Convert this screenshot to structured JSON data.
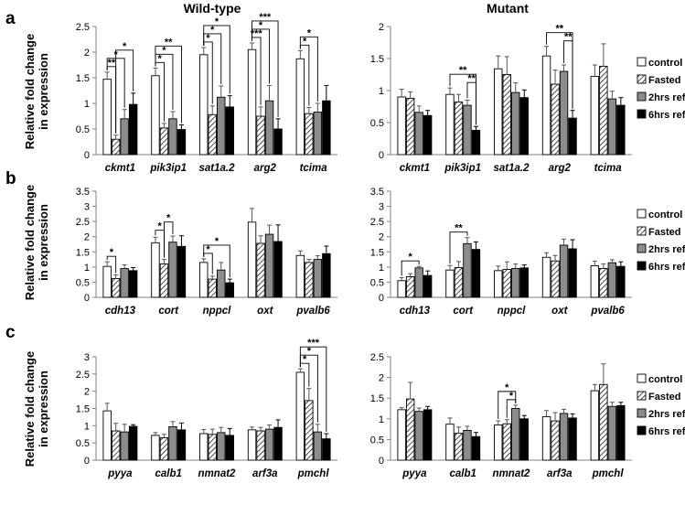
{
  "columns": [
    "Wild-type",
    "Mutant"
  ],
  "ylabel_line1": "Relative fold change",
  "ylabel_line2": "in expression",
  "legend": [
    "control",
    "Fasted",
    "2hrs refed",
    "6hrs refed"
  ],
  "colors": {
    "control": "#ffffff",
    "fasted": "hatched",
    "refed2": "#8c8c8c",
    "refed6": "#000000",
    "axis": "#808080"
  },
  "chart_data": [
    {
      "id": "a-wt",
      "row": "a",
      "column": "Wild-type",
      "type": "bar",
      "categories": [
        "ckmt1",
        "pik3ip1",
        "sat1a.2",
        "arg2",
        "tcima"
      ],
      "ylim": [
        0,
        2.5
      ],
      "yticks": [
        "0",
        "0.5",
        "1",
        "1.5",
        "2",
        "2.5"
      ],
      "series": [
        {
          "name": "control",
          "values": [
            1.47,
            1.54,
            1.95,
            2.05,
            1.87
          ],
          "errors": [
            0.14,
            0.15,
            0.14,
            0.13,
            0.16
          ]
        },
        {
          "name": "Fasted",
          "values": [
            0.3,
            0.52,
            0.78,
            0.75,
            0.8
          ],
          "errors": [
            0.08,
            0.09,
            0.17,
            0.18,
            0.12
          ]
        },
        {
          "name": "2hrs refed",
          "values": [
            0.7,
            0.7,
            1.12,
            1.05,
            0.83
          ],
          "errors": [
            0.18,
            0.14,
            0.22,
            0.3,
            0.17
          ]
        },
        {
          "name": "6hrs refed",
          "values": [
            0.98,
            0.49,
            0.93,
            0.5,
            1.05
          ],
          "errors": [
            0.22,
            0.09,
            0.22,
            0.2,
            0.3
          ]
        }
      ],
      "significance": [
        {
          "cat": 0,
          "pair": [
            0,
            1
          ],
          "label": "**"
        },
        {
          "cat": 0,
          "pair": [
            0,
            2
          ],
          "label": "*"
        },
        {
          "cat": 0,
          "pair": [
            1,
            3
          ],
          "label": "*"
        },
        {
          "cat": 1,
          "pair": [
            0,
            1
          ],
          "label": "*"
        },
        {
          "cat": 1,
          "pair": [
            0,
            2
          ],
          "label": "*"
        },
        {
          "cat": 1,
          "pair": [
            0,
            3
          ],
          "label": "**"
        },
        {
          "cat": 2,
          "pair": [
            0,
            1
          ],
          "label": "*"
        },
        {
          "cat": 2,
          "pair": [
            0,
            2
          ],
          "label": "*"
        },
        {
          "cat": 2,
          "pair": [
            0,
            3
          ],
          "label": "*"
        },
        {
          "cat": 3,
          "pair": [
            0,
            1
          ],
          "label": "***"
        },
        {
          "cat": 3,
          "pair": [
            0,
            2
          ],
          "label": "*"
        },
        {
          "cat": 3,
          "pair": [
            0,
            3
          ],
          "label": "***"
        },
        {
          "cat": 4,
          "pair": [
            0,
            1
          ],
          "label": "*"
        },
        {
          "cat": 4,
          "pair": [
            0,
            2
          ],
          "label": "*"
        }
      ]
    },
    {
      "id": "a-mut",
      "row": "a",
      "column": "Mutant",
      "type": "bar",
      "categories": [
        "ckmt1",
        "pik3ip1",
        "sat1a.2",
        "arg2",
        "tcima"
      ],
      "ylim": [
        0,
        2
      ],
      "yticks": [
        "0",
        "0.5",
        "1",
        "1.5",
        "2"
      ],
      "series": [
        {
          "name": "control",
          "values": [
            0.9,
            0.94,
            1.34,
            1.54,
            1.22
          ],
          "errors": [
            0.12,
            0.1,
            0.2,
            0.15,
            0.18
          ]
        },
        {
          "name": "Fasted",
          "values": [
            0.88,
            0.82,
            1.25,
            1.1,
            1.38
          ],
          "errors": [
            0.1,
            0.12,
            0.28,
            0.22,
            0.35
          ]
        },
        {
          "name": "2hrs refed",
          "values": [
            0.66,
            0.77,
            0.97,
            1.3,
            0.87
          ],
          "errors": [
            0.1,
            0.08,
            0.15,
            0.1,
            0.12
          ]
        },
        {
          "name": "6hrs refed",
          "values": [
            0.61,
            0.38,
            0.89,
            0.57,
            0.77
          ],
          "errors": [
            0.08,
            0.06,
            0.12,
            0.12,
            0.12
          ]
        }
      ],
      "significance": [
        {
          "cat": 1,
          "pair": [
            0,
            3
          ],
          "label": "**"
        },
        {
          "cat": 1,
          "pair": [
            2,
            3
          ],
          "label": "**"
        },
        {
          "cat": 3,
          "pair": [
            0,
            3
          ],
          "label": "**"
        },
        {
          "cat": 3,
          "pair": [
            2,
            3
          ],
          "label": "**"
        }
      ]
    },
    {
      "id": "b-wt",
      "row": "b",
      "column": "Wild-type",
      "type": "bar",
      "categories": [
        "cdh13",
        "cort",
        "nppcl",
        "oxt",
        "pvalb6"
      ],
      "ylim": [
        0,
        3.5
      ],
      "yticks": [
        "0",
        "0.5",
        "1",
        "1.5",
        "2",
        "2.5",
        "3",
        "3.5"
      ],
      "series": [
        {
          "name": "control",
          "values": [
            1.02,
            1.8,
            1.15,
            2.48,
            1.38
          ],
          "errors": [
            0.15,
            0.18,
            0.12,
            0.45,
            0.15
          ]
        },
        {
          "name": "Fasted",
          "values": [
            0.62,
            1.1,
            0.6,
            1.78,
            1.15
          ],
          "errors": [
            0.12,
            0.15,
            0.1,
            0.25,
            0.1
          ]
        },
        {
          "name": "2hrs refed",
          "values": [
            0.95,
            1.82,
            0.9,
            2.08,
            1.25
          ],
          "errors": [
            0.12,
            0.2,
            0.25,
            0.3,
            0.12
          ]
        },
        {
          "name": "6hrs refed",
          "values": [
            0.88,
            1.68,
            0.48,
            1.84,
            1.44
          ],
          "errors": [
            0.1,
            0.35,
            0.12,
            0.55,
            0.25
          ]
        }
      ],
      "significance": [
        {
          "cat": 0,
          "pair": [
            0,
            1
          ],
          "label": "*"
        },
        {
          "cat": 1,
          "pair": [
            0,
            1
          ],
          "label": "*"
        },
        {
          "cat": 1,
          "pair": [
            1,
            2
          ],
          "label": "*"
        },
        {
          "cat": 2,
          "pair": [
            0,
            1
          ],
          "label": "*"
        },
        {
          "cat": 2,
          "pair": [
            0,
            3
          ],
          "label": "*"
        }
      ]
    },
    {
      "id": "b-mut",
      "row": "b",
      "column": "Mutant",
      "type": "bar",
      "categories": [
        "cdh13",
        "cort",
        "nppcl",
        "oxt",
        "pvalb6"
      ],
      "ylim": [
        0,
        3.5
      ],
      "yticks": [
        "0",
        "0.5",
        "1",
        "1.5",
        "2",
        "2.5",
        "3",
        "3.5"
      ],
      "series": [
        {
          "name": "control",
          "values": [
            0.55,
            0.9,
            0.88,
            1.32,
            1.04
          ],
          "errors": [
            0.1,
            0.15,
            0.15,
            0.15,
            0.15
          ]
        },
        {
          "name": "Fasted",
          "values": [
            0.68,
            0.98,
            0.92,
            1.2,
            0.95
          ],
          "errors": [
            0.1,
            0.2,
            0.25,
            0.18,
            0.15
          ]
        },
        {
          "name": "2hrs refed",
          "values": [
            0.97,
            1.77,
            0.95,
            1.72,
            1.14
          ],
          "errors": [
            0.05,
            0.2,
            0.15,
            0.2,
            0.1
          ]
        },
        {
          "name": "6hrs refed",
          "values": [
            0.72,
            1.58,
            0.97,
            1.6,
            1.02
          ],
          "errors": [
            0.15,
            0.25,
            0.1,
            0.3,
            0.15
          ]
        }
      ],
      "significance": [
        {
          "cat": 0,
          "pair": [
            0,
            2
          ],
          "label": "*"
        },
        {
          "cat": 1,
          "pair": [
            0,
            2
          ],
          "label": "**"
        }
      ]
    },
    {
      "id": "c-wt",
      "row": "c",
      "column": "Wild-type",
      "type": "bar",
      "categories": [
        "pyya",
        "calb1",
        "nmnat2",
        "arf3a",
        "pmchl"
      ],
      "ylim": [
        0,
        3
      ],
      "yticks": [
        "0",
        "0.5",
        "1",
        "1.5",
        "2",
        "2.5",
        "3"
      ],
      "series": [
        {
          "name": "control",
          "values": [
            1.43,
            0.72,
            0.77,
            0.88,
            2.55
          ],
          "errors": [
            0.22,
            0.08,
            0.12,
            0.08,
            0.1
          ]
        },
        {
          "name": "Fasted",
          "values": [
            0.85,
            0.65,
            0.75,
            0.85,
            1.73
          ],
          "errors": [
            0.22,
            0.1,
            0.15,
            0.1,
            0.35
          ]
        },
        {
          "name": "2hrs refed",
          "values": [
            0.82,
            0.97,
            0.8,
            0.9,
            0.82
          ],
          "errors": [
            0.22,
            0.15,
            0.15,
            0.12,
            0.22
          ]
        },
        {
          "name": "6hrs refed",
          "values": [
            0.98,
            0.88,
            0.72,
            0.95,
            0.62
          ],
          "errors": [
            0.05,
            0.2,
            0.2,
            0.22,
            0.15
          ]
        }
      ],
      "significance": [
        {
          "cat": 4,
          "pair": [
            0,
            1
          ],
          "label": "*"
        },
        {
          "cat": 4,
          "pair": [
            0,
            2
          ],
          "label": "*"
        },
        {
          "cat": 4,
          "pair": [
            0,
            3
          ],
          "label": "***"
        }
      ]
    },
    {
      "id": "c-mut",
      "row": "c",
      "column": "Mutant",
      "type": "bar",
      "categories": [
        "pyya",
        "calb1",
        "nmnat2",
        "arf3a",
        "pmchl"
      ],
      "ylim": [
        0,
        2.5
      ],
      "yticks": [
        "0",
        "0.5",
        "1",
        "1.5",
        "2",
        "2.5"
      ],
      "series": [
        {
          "name": "control",
          "values": [
            1.22,
            0.87,
            0.85,
            1.05,
            1.68
          ],
          "errors": [
            0.05,
            0.15,
            0.1,
            0.15,
            0.15
          ]
        },
        {
          "name": "Fasted",
          "values": [
            1.48,
            0.65,
            0.88,
            0.95,
            1.83
          ],
          "errors": [
            0.4,
            0.15,
            0.1,
            0.2,
            0.5
          ]
        },
        {
          "name": "2hrs refed",
          "values": [
            1.18,
            0.72,
            1.25,
            1.13,
            1.3
          ],
          "errors": [
            0.08,
            0.1,
            0.08,
            0.1,
            0.1
          ]
        },
        {
          "name": "6hrs refed",
          "values": [
            1.22,
            0.57,
            1.0,
            1.02,
            1.32
          ],
          "errors": [
            0.08,
            0.1,
            0.08,
            0.1,
            0.08
          ]
        }
      ],
      "significance": [
        {
          "cat": 2,
          "pair": [
            0,
            2
          ],
          "label": "*"
        },
        {
          "cat": 2,
          "pair": [
            1,
            2
          ],
          "label": "*"
        }
      ]
    }
  ]
}
